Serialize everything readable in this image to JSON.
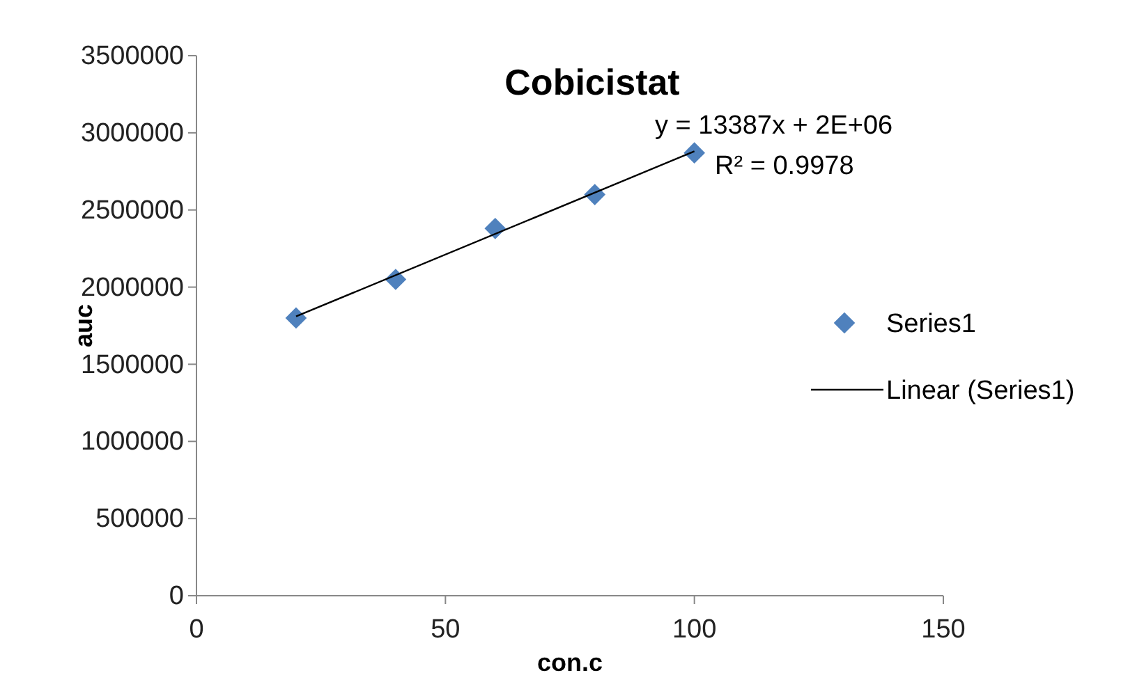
{
  "chart_data": {
    "type": "scatter",
    "title": "Cobicistat",
    "xlabel": "con.c",
    "ylabel": "auc",
    "xlim": [
      0,
      150
    ],
    "xticks": [
      0,
      50,
      100,
      150
    ],
    "ylim": [
      0,
      3500000
    ],
    "yticks": [
      0,
      500000,
      1000000,
      1500000,
      2000000,
      2500000,
      3000000,
      3500000
    ],
    "x": [
      20,
      40,
      60,
      80,
      100
    ],
    "series": [
      {
        "name": "Series1",
        "marker": "diamond",
        "color": "#4f81bd",
        "values": [
          1800000,
          2050000,
          2380000,
          2600000,
          2870000
        ]
      },
      {
        "name": "Linear (Series1)",
        "type": "line",
        "marker": "none",
        "color": "#000000",
        "x": [
          20,
          100
        ],
        "values": [
          1810000,
          2880000
        ]
      }
    ],
    "annotations": [
      "y = 13387x + 2E+06",
      "R² = 0.9978"
    ],
    "grid": false,
    "legend": "right"
  }
}
